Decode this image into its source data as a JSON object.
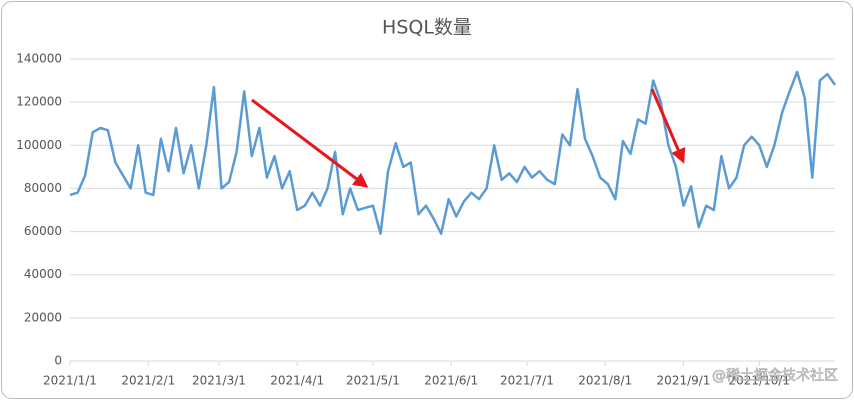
{
  "chart_data": {
    "type": "line",
    "title": "HSQL数量",
    "watermark": "@稀土掘金技术社区",
    "x": [
      "2021/1/1",
      "2021/1/4",
      "2021/1/7",
      "2021/1/10",
      "2021/1/13",
      "2021/1/16",
      "2021/1/19",
      "2021/1/22",
      "2021/1/25",
      "2021/1/28",
      "2021/1/31",
      "2021/2/3",
      "2021/2/6",
      "2021/2/9",
      "2021/2/12",
      "2021/2/15",
      "2021/2/18",
      "2021/2/21",
      "2021/2/24",
      "2021/2/27",
      "2021/3/2",
      "2021/3/5",
      "2021/3/8",
      "2021/3/11",
      "2021/3/14",
      "2021/3/17",
      "2021/3/20",
      "2021/3/23",
      "2021/3/26",
      "2021/3/29",
      "2021/4/1",
      "2021/4/4",
      "2021/4/7",
      "2021/4/10",
      "2021/4/13",
      "2021/4/16",
      "2021/4/19",
      "2021/4/22",
      "2021/4/25",
      "2021/4/28",
      "2021/5/1",
      "2021/5/4",
      "2021/5/7",
      "2021/5/10",
      "2021/5/13",
      "2021/5/16",
      "2021/5/19",
      "2021/5/22",
      "2021/5/25",
      "2021/5/28",
      "2021/5/31",
      "2021/6/3",
      "2021/6/6",
      "2021/6/9",
      "2021/6/12",
      "2021/6/15",
      "2021/6/18",
      "2021/6/21",
      "2021/6/24",
      "2021/6/27",
      "2021/6/30",
      "2021/7/3",
      "2021/7/6",
      "2021/7/9",
      "2021/7/12",
      "2021/7/15",
      "2021/7/18",
      "2021/7/21",
      "2021/7/24",
      "2021/7/27",
      "2021/7/30",
      "2021/8/2",
      "2021/8/5",
      "2021/8/8",
      "2021/8/11",
      "2021/8/14",
      "2021/8/17",
      "2021/8/20",
      "2021/8/23",
      "2021/8/26",
      "2021/8/29",
      "2021/9/1",
      "2021/9/4",
      "2021/9/7",
      "2021/9/10",
      "2021/9/13",
      "2021/9/16",
      "2021/9/19",
      "2021/9/22",
      "2021/9/25",
      "2021/9/28",
      "2021/10/1",
      "2021/10/4",
      "2021/10/7",
      "2021/10/10",
      "2021/10/13",
      "2021/10/16",
      "2021/10/19",
      "2021/10/22",
      "2021/10/25",
      "2021/10/28",
      "2021/10/31"
    ],
    "series": [
      {
        "name": "HSQL数量",
        "color": "#5b9bd5",
        "values": [
          77000,
          78000,
          86000,
          106000,
          108000,
          107000,
          92000,
          86000,
          80000,
          100000,
          78000,
          77000,
          103000,
          88000,
          108000,
          87000,
          100000,
          80000,
          100000,
          127000,
          80000,
          83000,
          97000,
          125000,
          95000,
          108000,
          85000,
          95000,
          80000,
          88000,
          70000,
          72000,
          78000,
          72000,
          80000,
          97000,
          68000,
          80000,
          70000,
          71000,
          72000,
          59000,
          88000,
          101000,
          90000,
          92000,
          68000,
          72000,
          66000,
          59000,
          75000,
          67000,
          74000,
          78000,
          75000,
          80000,
          100000,
          84000,
          87000,
          83000,
          90000,
          85000,
          88000,
          84000,
          82000,
          105000,
          100000,
          126000,
          103000,
          95000,
          85000,
          82000,
          75000,
          102000,
          96000,
          112000,
          110000,
          130000,
          120000,
          100000,
          90000,
          72000,
          81000,
          62000,
          72000,
          70000,
          95000,
          80000,
          85000,
          100000,
          104000,
          100000,
          90000,
          100000,
          115000,
          125000,
          134000,
          122000,
          85000,
          130000,
          133000,
          128000
        ]
      }
    ],
    "xlim": [
      "2021/1/1",
      "2021/10/31"
    ],
    "xticks": [
      "2021/1/1",
      "2021/2/1",
      "2021/3/1",
      "2021/4/1",
      "2021/5/1",
      "2021/6/1",
      "2021/7/1",
      "2021/8/1",
      "2021/9/1",
      "2021/10/1"
    ],
    "ylim": [
      0,
      140000
    ],
    "yticks": [
      0,
      20000,
      40000,
      60000,
      80000,
      100000,
      120000,
      140000
    ],
    "grid": true
  }
}
